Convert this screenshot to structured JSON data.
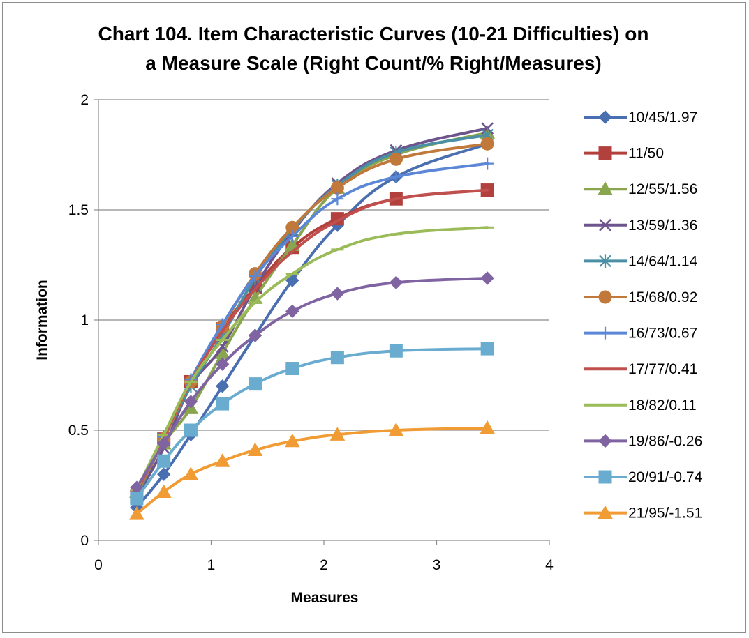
{
  "chart_data": {
    "type": "line",
    "title_lines": [
      "Chart 104. Item Characteristic Curves (10-21 Difficulties) on",
      "a Measure Scale (Right Count/% Right/Measures)"
    ],
    "xlabel": "Measures",
    "ylabel": "Information",
    "xlim": [
      0,
      4
    ],
    "ylim": [
      0,
      2
    ],
    "x_ticks": [
      "0",
      "1",
      "2",
      "3",
      "4"
    ],
    "y_ticks": [
      "0",
      "0.5",
      "1",
      "1.5",
      "2"
    ],
    "grid": "horizontal",
    "legend_position": "right",
    "x": [
      0.34,
      0.58,
      0.82,
      1.1,
      1.39,
      1.72,
      2.12,
      2.64,
      3.45
    ],
    "series": [
      {
        "name": "10/45/1.97",
        "color": "#4A6FB0",
        "marker": "diamond",
        "values": [
          0.15,
          0.3,
          0.48,
          0.7,
          0.93,
          1.18,
          1.43,
          1.65,
          1.8
        ]
      },
      {
        "name": "11/50",
        "color": "#B2413E",
        "marker": "square",
        "values": [
          0.2,
          0.46,
          0.72,
          0.96,
          1.15,
          1.33,
          1.46,
          1.55,
          1.59
        ]
      },
      {
        "name": "12/55/1.56",
        "color": "#89A54E",
        "marker": "triangle",
        "values": [
          0.22,
          0.44,
          0.6,
          0.85,
          1.1,
          1.34,
          1.6,
          1.75,
          1.85
        ]
      },
      {
        "name": "13/59/1.36",
        "color": "#6E548D",
        "marker": "x",
        "values": [
          0.2,
          0.42,
          0.7,
          0.88,
          1.15,
          1.4,
          1.62,
          1.77,
          1.87
        ]
      },
      {
        "name": "14/64/1.14",
        "color": "#4A8FA3",
        "marker": "asterisk",
        "values": [
          0.2,
          0.46,
          0.7,
          0.93,
          1.19,
          1.41,
          1.61,
          1.76,
          1.84
        ]
      },
      {
        "name": "15/68/0.92",
        "color": "#C0793A",
        "marker": "circle",
        "values": [
          0.21,
          0.46,
          0.72,
          0.97,
          1.21,
          1.42,
          1.6,
          1.73,
          1.8
        ]
      },
      {
        "name": "16/73/0.67",
        "color": "#5B87D6",
        "marker": "plus",
        "values": [
          0.22,
          0.47,
          0.73,
          0.98,
          1.2,
          1.38,
          1.55,
          1.65,
          1.71
        ]
      },
      {
        "name": "17/77/0.41",
        "color": "#C0504D",
        "marker": "none",
        "values": [
          0.22,
          0.47,
          0.72,
          0.95,
          1.14,
          1.31,
          1.45,
          1.55,
          1.59
        ]
      },
      {
        "name": "18/82/0.11",
        "color": "#9BBB59",
        "marker": "dash",
        "values": [
          0.23,
          0.48,
          0.72,
          0.91,
          1.08,
          1.21,
          1.32,
          1.39,
          1.42
        ]
      },
      {
        "name": "19/86/-0.26",
        "color": "#8064A2",
        "marker": "diamond",
        "values": [
          0.24,
          0.44,
          0.63,
          0.8,
          0.93,
          1.04,
          1.12,
          1.17,
          1.19
        ]
      },
      {
        "name": "20/91/-0.74",
        "color": "#69ACD0",
        "marker": "square",
        "values": [
          0.19,
          0.36,
          0.5,
          0.62,
          0.71,
          0.78,
          0.83,
          0.86,
          0.87
        ]
      },
      {
        "name": "21/95/-1.51",
        "color": "#F19B35",
        "marker": "triangle",
        "values": [
          0.12,
          0.22,
          0.3,
          0.36,
          0.41,
          0.45,
          0.48,
          0.5,
          0.51
        ]
      }
    ]
  }
}
